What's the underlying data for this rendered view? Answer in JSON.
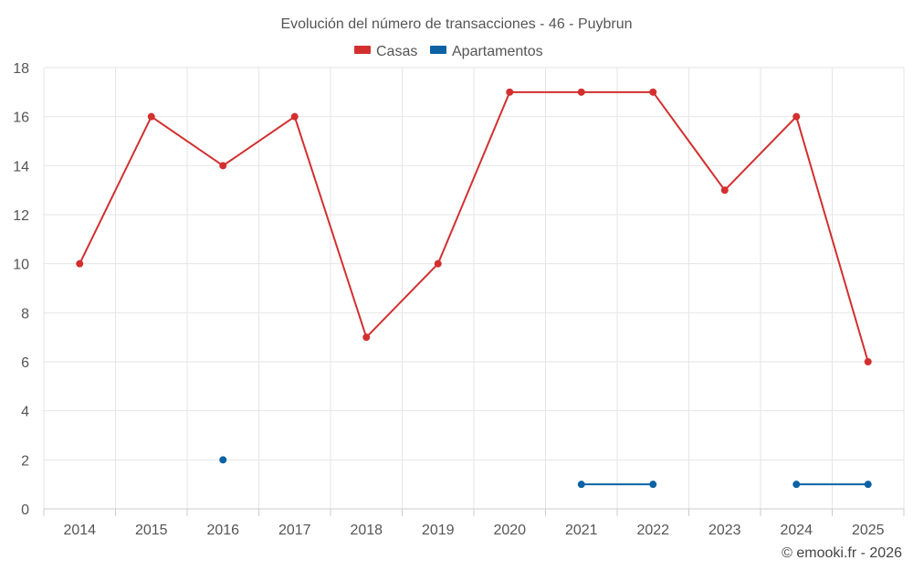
{
  "chart_data": {
    "type": "line",
    "title": "Evolución del número de transacciones - 46 - Puybrun",
    "categories": [
      "2014",
      "2015",
      "2016",
      "2017",
      "2018",
      "2019",
      "2020",
      "2021",
      "2022",
      "2023",
      "2024",
      "2025"
    ],
    "ylim": [
      0,
      18
    ],
    "yticks": [
      0,
      2,
      4,
      6,
      8,
      10,
      12,
      14,
      16,
      18
    ],
    "grid": true,
    "legend_position": "top-center",
    "series": [
      {
        "name": "Casas",
        "color": "#d32f2f",
        "values": [
          10,
          16,
          14,
          16,
          7,
          10,
          17,
          17,
          17,
          13,
          16,
          6
        ]
      },
      {
        "name": "Apartamentos",
        "color": "#0b62a4",
        "values": [
          null,
          null,
          2,
          null,
          null,
          null,
          null,
          1,
          1,
          null,
          1,
          1
        ]
      }
    ]
  },
  "credit": "© emooki.fr - 2026"
}
